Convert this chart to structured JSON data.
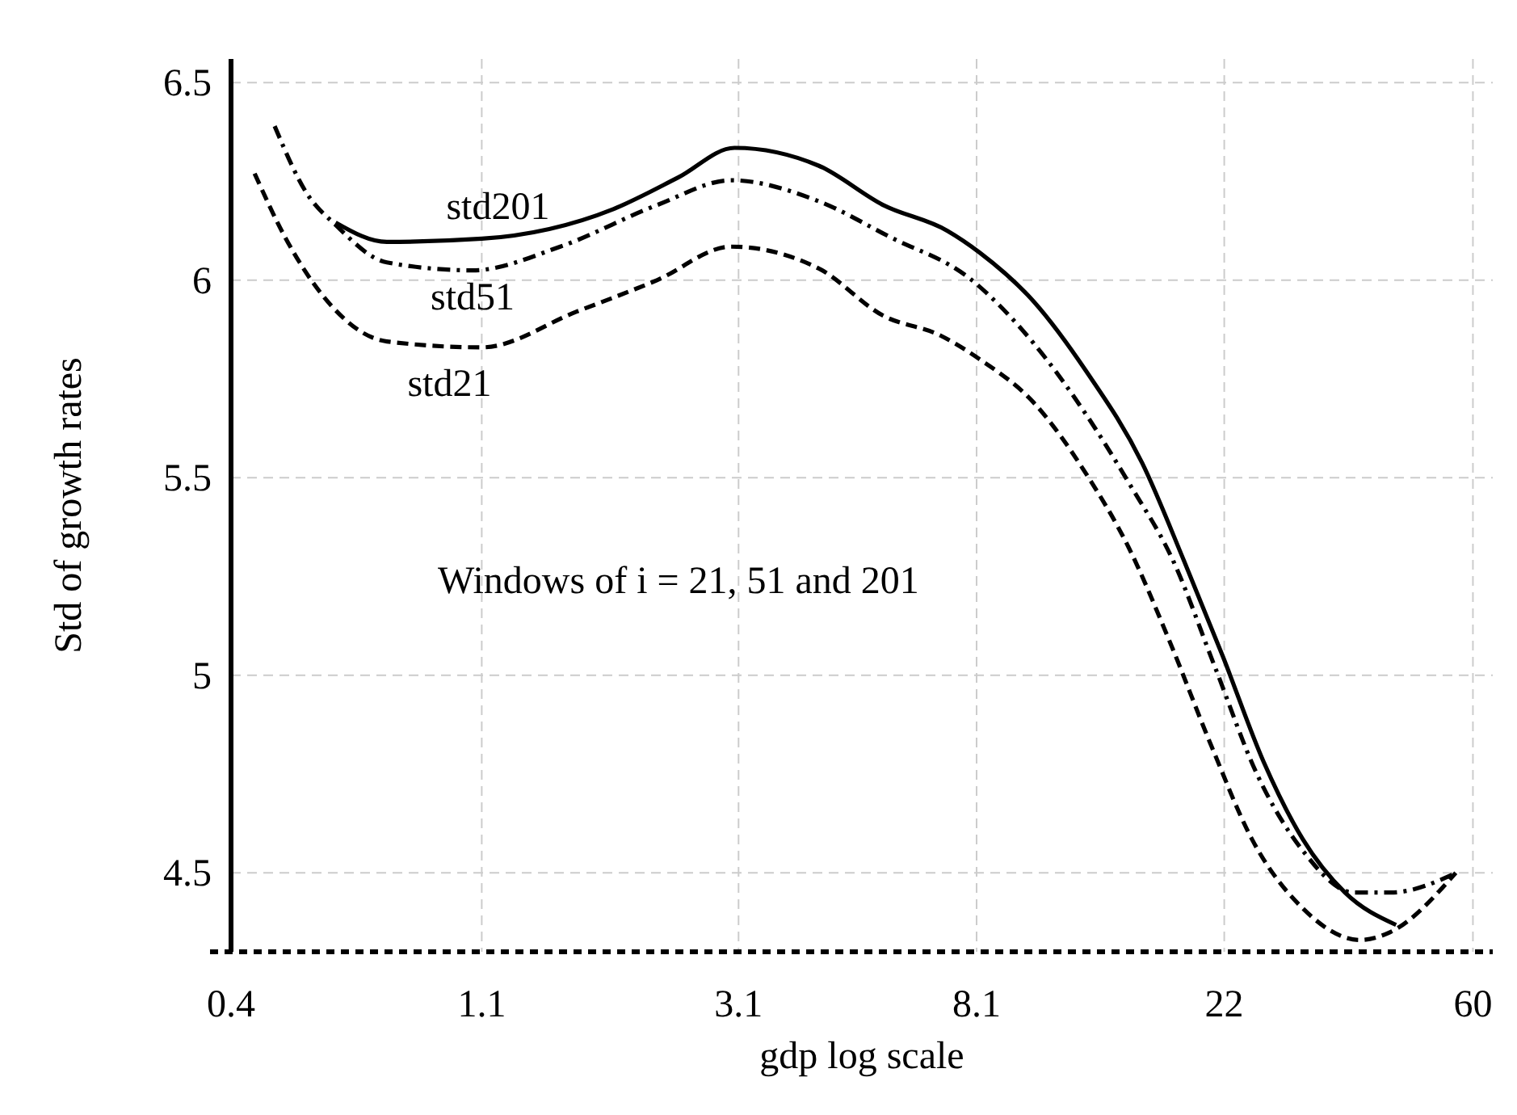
{
  "chart_data": {
    "type": "line",
    "xlabel": "gdp log scale",
    "ylabel": "Std of growth rates",
    "annotations": [
      "Windows of i = 21, 51 and 201"
    ],
    "log": "x",
    "xlim": [
      0.4,
      65
    ],
    "xticks": [
      0.4,
      1.1,
      3.1,
      8.1,
      22,
      60
    ],
    "ylim": [
      4.3,
      6.56
    ],
    "yticks": [
      4.5,
      5,
      5.5,
      6,
      6.5
    ],
    "grid": true,
    "series": [
      {
        "name": "std201",
        "color": "#000000",
        "line_style": "solid",
        "x": [
          0.61,
          0.75,
          1.1,
          1.87,
          2.43,
          3.05,
          4.28,
          5.56,
          7.2,
          8.2,
          10.2,
          12.6,
          15.8,
          18.7,
          21.9,
          25.8,
          30.2,
          35.8,
          44
        ],
        "values": [
          6.146,
          6.097,
          6.105,
          6.18,
          6.26,
          6.335,
          6.29,
          6.19,
          6.125,
          6.07,
          5.946,
          5.77,
          5.537,
          5.29,
          5.046,
          4.78,
          4.585,
          4.45,
          4.368
        ]
      },
      {
        "name": "std51",
        "color": "#000000",
        "line_style": "dashdot",
        "x": [
          0.477,
          0.543,
          0.61,
          0.75,
          1.06,
          1.51,
          2.23,
          3.01,
          4.28,
          5.7,
          7.9,
          10.2,
          12.6,
          15,
          17.9,
          21.2,
          25.1,
          30.2,
          37.1,
          43,
          56.2
        ],
        "values": [
          6.39,
          6.22,
          6.14,
          6.045,
          6.025,
          6.085,
          6.19,
          6.253,
          6.2,
          6.11,
          6.003,
          5.84,
          5.66,
          5.485,
          5.29,
          5.02,
          4.75,
          4.556,
          4.45,
          4.45,
          4.5
        ]
      },
      {
        "name": "std21",
        "color": "#000000",
        "line_style": "dashed",
        "x": [
          0.44,
          0.497,
          0.58,
          0.75,
          1.1,
          1.61,
          2.23,
          3.01,
          4.28,
          5.56,
          7.0,
          8.2,
          10.2,
          12.6,
          15,
          17.6,
          20.9,
          24.6,
          30.2,
          38,
          43,
          56
        ],
        "values": [
          6.27,
          6.11,
          5.96,
          5.845,
          5.83,
          5.92,
          6.0,
          6.085,
          6.03,
          5.91,
          5.86,
          5.8,
          5.69,
          5.51,
          5.32,
          5.09,
          4.82,
          4.585,
          4.41,
          4.33,
          4.35,
          4.5
        ]
      }
    ]
  }
}
